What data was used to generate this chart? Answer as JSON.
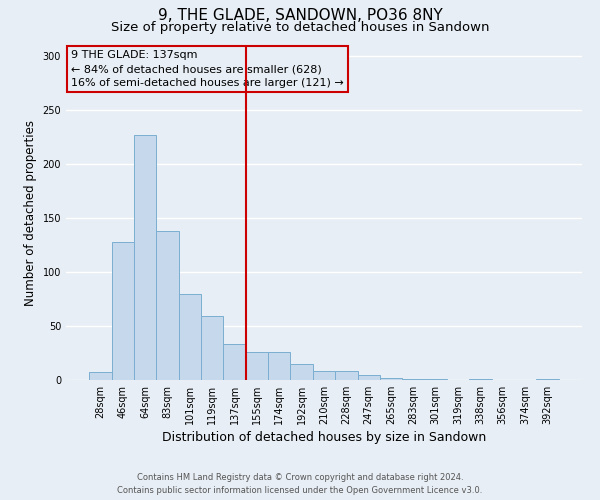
{
  "title": "9, THE GLADE, SANDOWN, PO36 8NY",
  "subtitle": "Size of property relative to detached houses in Sandown",
  "xlabel": "Distribution of detached houses by size in Sandown",
  "ylabel": "Number of detached properties",
  "bar_labels": [
    "28sqm",
    "46sqm",
    "64sqm",
    "83sqm",
    "101sqm",
    "119sqm",
    "137sqm",
    "155sqm",
    "174sqm",
    "192sqm",
    "210sqm",
    "228sqm",
    "247sqm",
    "265sqm",
    "283sqm",
    "301sqm",
    "319sqm",
    "338sqm",
    "356sqm",
    "374sqm",
    "392sqm"
  ],
  "bar_values": [
    7,
    128,
    227,
    138,
    80,
    59,
    33,
    26,
    26,
    15,
    8,
    8,
    5,
    2,
    1,
    1,
    0,
    1,
    0,
    0,
    1
  ],
  "bar_color": "#c6d9ec",
  "bar_edge_color": "#7aaed0",
  "vline_color": "#cc0000",
  "annotation_line1": "9 THE GLADE: 137sqm",
  "annotation_line2": "← 84% of detached houses are smaller (628)",
  "annotation_line3": "16% of semi-detached houses are larger (121) →",
  "annotation_box_color": "#cc0000",
  "ylim": [
    0,
    310
  ],
  "yticks": [
    0,
    50,
    100,
    150,
    200,
    250,
    300
  ],
  "footer_line1": "Contains HM Land Registry data © Crown copyright and database right 2024.",
  "footer_line2": "Contains public sector information licensed under the Open Government Licence v3.0.",
  "background_color": "#e8eef5",
  "grid_color": "#ffffff",
  "title_fontsize": 11,
  "subtitle_fontsize": 9.5,
  "tick_fontsize": 7,
  "ylabel_fontsize": 8.5,
  "xlabel_fontsize": 9,
  "annotation_fontsize": 8,
  "footer_fontsize": 6
}
